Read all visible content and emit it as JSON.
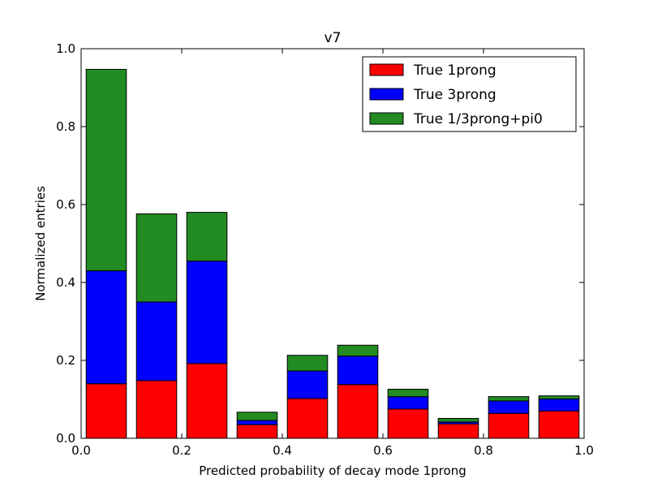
{
  "chart_data": {
    "type": "bar",
    "stacked": true,
    "title": "v7",
    "xlabel": "Predicted probability of decay mode 1prong",
    "ylabel": "Normalized entries",
    "xlim": [
      0.0,
      1.0
    ],
    "ylim": [
      0.0,
      1.0
    ],
    "xticks": [
      "0.0",
      "0.2",
      "0.4",
      "0.6",
      "0.8",
      "1.0"
    ],
    "yticks": [
      "0.0",
      "0.2",
      "0.4",
      "0.6",
      "0.8",
      "1.0"
    ],
    "bin_width": 0.1,
    "bar_width": 0.08,
    "bins": [
      0.0,
      0.1,
      0.2,
      0.3,
      0.4,
      0.5,
      0.6,
      0.7,
      0.8,
      0.9
    ],
    "legend_position": "top-right",
    "grid": false,
    "series": [
      {
        "name": "True 1prong",
        "color": "#ff0000",
        "values": [
          0.14,
          0.148,
          0.192,
          0.035,
          0.102,
          0.138,
          0.075,
          0.037,
          0.064,
          0.07
        ]
      },
      {
        "name": "True 3prong",
        "color": "#0000ff",
        "values": [
          0.29,
          0.202,
          0.263,
          0.011,
          0.071,
          0.073,
          0.032,
          0.005,
          0.032,
          0.031
        ]
      },
      {
        "name": "True 1/3prong+pi0",
        "color": "#228b22",
        "values": [
          0.517,
          0.226,
          0.125,
          0.021,
          0.04,
          0.028,
          0.019,
          0.009,
          0.011,
          0.008
        ]
      }
    ]
  }
}
